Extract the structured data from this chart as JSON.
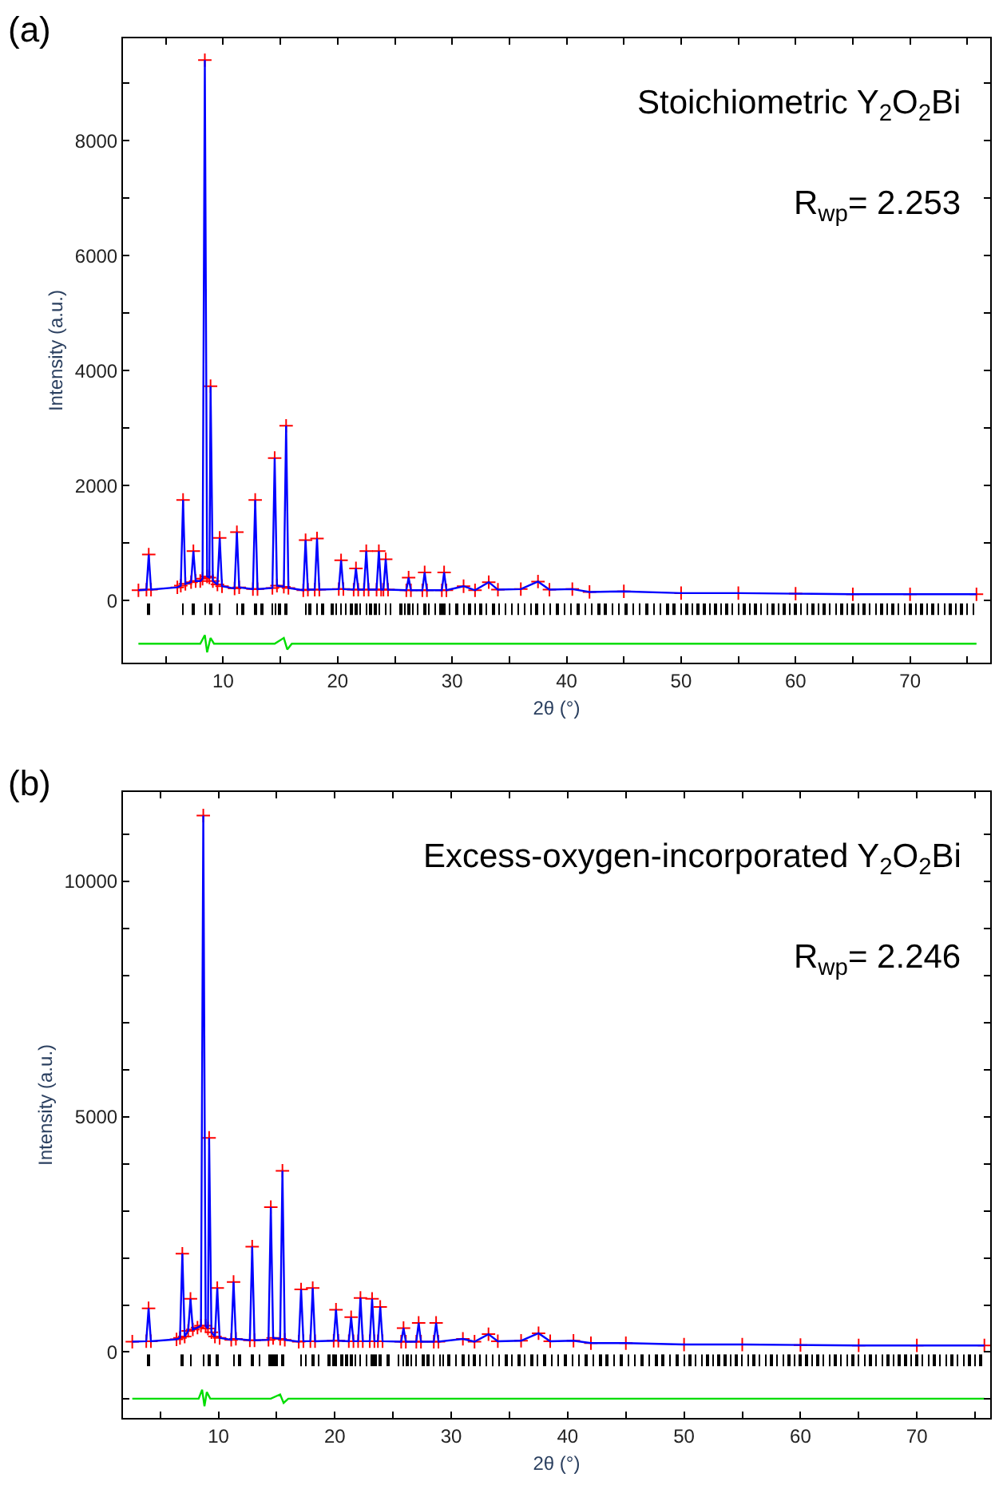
{
  "chart_data": [
    {
      "type": "scatter",
      "title": "(a)",
      "xlabel": "2θ (°)",
      "ylabel": "Intensity (a.u.)",
      "annotations": [
        "Stoichiometric Y$_{2}$O$_{2}$Bi",
        "R$_{wp}$= 2.253"
      ],
      "xlim": [
        1.25,
        77
      ],
      "ylim": [
        -1080,
        9780
      ],
      "xticks": [
        {
          "value": 5,
          "label": null
        },
        10,
        {
          "value": 15,
          "label": null
        },
        20,
        {
          "value": 25,
          "label": null
        },
        30,
        {
          "value": 35,
          "label": null
        },
        40,
        {
          "value": 45,
          "label": null
        },
        50,
        {
          "value": 55,
          "label": null
        },
        60,
        {
          "value": 65,
          "label": null
        },
        70,
        {
          "value": 75,
          "label": null
        }
      ],
      "yticks": [
        0,
        {
          "value": 1000,
          "label": null
        },
        2000,
        {
          "value": 3000,
          "label": null
        },
        4000,
        {
          "value": 5000,
          "label": null
        },
        6000,
        {
          "value": 7000,
          "label": null
        },
        8000,
        {
          "value": 9000,
          "label": null
        }
      ],
      "series": [
        {
          "marker": "cross",
          "color": "#ff0000",
          "x": [
            2.6,
            3.3,
            3.5,
            3.7,
            6.0,
            6.3,
            6.5,
            6.7,
            7.2,
            7.4,
            7.6,
            8.0,
            8.2,
            8.4,
            8.6,
            8.8,
            8.9,
            9.1,
            9.5,
            9.7,
            9.9,
            11.0,
            11.2,
            11.4,
            12.6,
            12.8,
            13.0,
            14.3,
            14.5,
            14.7,
            15.3,
            15.5,
            15.7,
            17.0,
            17.2,
            17.4,
            18.0,
            18.2,
            18.4,
            20.1,
            20.3,
            20.5,
            21.4,
            21.6,
            21.8,
            22.3,
            22.5,
            22.7,
            23.4,
            23.6,
            23.8,
            24.0,
            24.2,
            24.4,
            26.0,
            26.2,
            26.4,
            27.4,
            27.6,
            27.8,
            29.1,
            29.3,
            29.5,
            31,
            32,
            33.2,
            34,
            36,
            37.5,
            38.5,
            40.5,
            42,
            45,
            50,
            55,
            60,
            65,
            70,
            75.8
          ],
          "values": [
            180,
            190,
            800,
            190,
            230,
            260,
            1750,
            290,
            320,
            860,
            340,
            340,
            380,
            9400,
            420,
            400,
            3730,
            340,
            280,
            1090,
            250,
            210,
            1190,
            230,
            200,
            1750,
            200,
            220,
            2480,
            260,
            240,
            3040,
            220,
            180,
            1050,
            190,
            190,
            1080,
            190,
            200,
            700,
            200,
            190,
            560,
            190,
            190,
            860,
            190,
            190,
            860,
            190,
            190,
            720,
            190,
            180,
            400,
            180,
            180,
            490,
            180,
            180,
            490,
            180,
            250,
            180,
            320,
            190,
            200,
            330,
            190,
            200,
            150,
            160,
            130,
            130,
            120,
            110,
            110,
            110
          ]
        },
        {
          "type": "line",
          "line_style": "solid",
          "color": "#0000ff",
          "x": [
            2.6,
            3.3,
            3.5,
            3.7,
            6.0,
            6.3,
            6.5,
            6.7,
            7.2,
            7.4,
            7.6,
            8.0,
            8.2,
            8.4,
            8.6,
            8.8,
            8.9,
            9.1,
            9.5,
            9.7,
            9.9,
            11.0,
            11.2,
            11.4,
            12.6,
            12.8,
            13.0,
            14.3,
            14.5,
            14.7,
            15.3,
            15.5,
            15.7,
            17.0,
            17.2,
            17.4,
            18.0,
            18.2,
            18.4,
            20.1,
            20.3,
            20.5,
            21.4,
            21.6,
            21.8,
            22.3,
            22.5,
            22.7,
            23.4,
            23.6,
            23.8,
            24.0,
            24.2,
            24.4,
            26.0,
            26.2,
            26.4,
            27.4,
            27.6,
            27.8,
            29.1,
            29.3,
            29.5,
            31,
            32,
            33.2,
            34,
            36,
            37.5,
            38.5,
            40.5,
            42,
            45,
            50,
            55,
            60,
            65,
            70,
            75.8
          ],
          "values": [
            180,
            190,
            800,
            190,
            230,
            260,
            1750,
            290,
            320,
            860,
            340,
            340,
            380,
            9400,
            420,
            400,
            3730,
            340,
            280,
            1090,
            250,
            210,
            1190,
            230,
            200,
            1750,
            200,
            220,
            2480,
            260,
            240,
            3040,
            220,
            180,
            1050,
            190,
            190,
            1080,
            190,
            200,
            700,
            200,
            190,
            560,
            190,
            190,
            860,
            190,
            190,
            860,
            190,
            190,
            720,
            190,
            180,
            400,
            180,
            180,
            490,
            180,
            180,
            490,
            180,
            250,
            180,
            320,
            190,
            200,
            330,
            190,
            200,
            150,
            160,
            130,
            130,
            120,
            110,
            110,
            110
          ]
        },
        {
          "type": "bar",
          "color": "#000000",
          "x": [
            3.5,
            6.5,
            7.4,
            8.4,
            8.9,
            9.7,
            11.2,
            11.7,
            12.8,
            13.4,
            14.3,
            14.6,
            14.9,
            15.5,
            17.2,
            17.6,
            18.2,
            18.7,
            19.5,
            19.9,
            20.3,
            20.7,
            21.2,
            21.6,
            22.0,
            22.5,
            22.9,
            23.3,
            23.6,
            24.2,
            24.6,
            25.5,
            25.9,
            26.2,
            26.6,
            27.0,
            27.6,
            28.0,
            28.5,
            29.0,
            29.3,
            29.8,
            30.4,
            31.0,
            31.5,
            32.0,
            32.5,
            33.0,
            33.6,
            34.1,
            34.7,
            35.2,
            35.8,
            36.3,
            36.9,
            37.4,
            38.0,
            38.6,
            39.2,
            39.8,
            40.4,
            41.0,
            41.6,
            42.2,
            42.8,
            43.4,
            44.0,
            44.6,
            45.2,
            45.8,
            46.4,
            47.0,
            47.6,
            48.2,
            48.8,
            49.4,
            50.0,
            50.5,
            51.0,
            51.5,
            52.0,
            52.5,
            53.0,
            53.5,
            54.0,
            54.5,
            55.0,
            55.5,
            56.0,
            56.5,
            57.0,
            57.5,
            58.0,
            58.5,
            59.0,
            59.5,
            60.0,
            60.5,
            61.0,
            61.5,
            62.0,
            62.5,
            63.0,
            63.5,
            64.0,
            64.5,
            65.0,
            65.5,
            66.0,
            66.5,
            67.0,
            67.5,
            68.0,
            68.5,
            69.0,
            69.5,
            70.0,
            70.5,
            71.0,
            71.5,
            72.0,
            72.5,
            73.0,
            73.5,
            74.0,
            74.5,
            75.0,
            75.5
          ],
          "base": [
            -250,
            -250,
            -250,
            -250,
            -250,
            -250,
            -250,
            -250,
            -250,
            -250,
            -250,
            -250,
            -250,
            -250,
            -250,
            -250,
            -250,
            -250,
            -250,
            -250,
            -250,
            -250,
            -250,
            -250,
            -250,
            -250,
            -250,
            -250,
            -250,
            -250,
            -250,
            -250,
            -250,
            -250,
            -250,
            -250,
            -250,
            -250,
            -250,
            -250,
            -250,
            -250,
            -250,
            -250,
            -250,
            -250,
            -250,
            -250,
            -250,
            -250,
            -250,
            -250,
            -250,
            -250,
            -250,
            -250,
            -250,
            -250,
            -250,
            -250,
            -250,
            -250,
            -250,
            -250,
            -250,
            -250,
            -250,
            -250,
            -250,
            -250,
            -250,
            -250,
            -250,
            -250,
            -250,
            -250,
            -250,
            -250,
            -250,
            -250,
            -250,
            -250,
            -250,
            -250,
            -250,
            -250,
            -250,
            -250,
            -250,
            -250,
            -250,
            -250,
            -250,
            -250,
            -250,
            -250,
            -250,
            -250,
            -250,
            -250,
            -250,
            -250,
            -250,
            -250,
            -250,
            -250,
            -250,
            -250,
            -250,
            -250,
            -250,
            -250,
            -250,
            -250,
            -250,
            -250,
            -250,
            -250,
            -250,
            -250,
            -250,
            -250,
            -250,
            -250,
            -250,
            -250,
            -250,
            -250
          ],
          "values": [
            200,
            200,
            200,
            200,
            200,
            200,
            200,
            200,
            200,
            200,
            200,
            200,
            200,
            200,
            200,
            200,
            200,
            200,
            200,
            200,
            200,
            200,
            200,
            200,
            200,
            200,
            200,
            200,
            200,
            200,
            200,
            200,
            200,
            200,
            200,
            200,
            200,
            200,
            200,
            200,
            200,
            200,
            200,
            200,
            200,
            200,
            200,
            200,
            200,
            200,
            200,
            200,
            200,
            200,
            200,
            200,
            200,
            200,
            200,
            200,
            200,
            200,
            200,
            200,
            200,
            200,
            200,
            200,
            200,
            200,
            200,
            200,
            200,
            200,
            200,
            200,
            200,
            200,
            200,
            200,
            200,
            200,
            200,
            200,
            200,
            200,
            200,
            200,
            200,
            200,
            200,
            200,
            200,
            200,
            200,
            200,
            200,
            200,
            200,
            200,
            200,
            200,
            200,
            200,
            200,
            200,
            200,
            200,
            200,
            200,
            200,
            200,
            200,
            200,
            200,
            200,
            200,
            200,
            200,
            200,
            200,
            200,
            200,
            200,
            200,
            200,
            200,
            200
          ]
        },
        {
          "type": "line",
          "line_style": "solid",
          "color": "#00dd00",
          "x": [
            2.6,
            8.0,
            8.4,
            8.6,
            8.9,
            9.2,
            14.5,
            15.3,
            15.6,
            16.0,
            30,
            75.8
          ],
          "values": [
            -750,
            -750,
            -600,
            -900,
            -650,
            -750,
            -750,
            -650,
            -850,
            -750,
            -750,
            -750
          ]
        }
      ]
    },
    {
      "type": "scatter",
      "title": "(b)",
      "xlabel": "2θ (°)",
      "ylabel": "Intensity (a.u.)",
      "annotations": [
        "Excess-oxygen-incorporated Y$_{2}$O$_{2}$Bi",
        "R$_{wp}$= 2.246"
      ],
      "xlim": [
        1.8,
        76.3
      ],
      "ylim": [
        -1400,
        11900
      ],
      "xticks": [
        {
          "value": 5,
          "label": null
        },
        10,
        {
          "value": 15,
          "label": null
        },
        20,
        {
          "value": 25,
          "label": null
        },
        30,
        {
          "value": 35,
          "label": null
        },
        40,
        {
          "value": 45,
          "label": null
        },
        50,
        {
          "value": 55,
          "label": null
        },
        60,
        {
          "value": 65,
          "label": null
        },
        70,
        {
          "value": 75,
          "label": null
        }
      ],
      "yticks": [
        {
          "value": -1000,
          "label": null
        },
        0,
        {
          "value": 1000,
          "label": null
        },
        {
          "value": 2000,
          "label": null
        },
        {
          "value": 3000,
          "label": null
        },
        {
          "value": 4000,
          "label": null
        },
        5000,
        {
          "value": 6000,
          "label": null
        },
        {
          "value": 7000,
          "label": null
        },
        {
          "value": 8000,
          "label": null
        },
        {
          "value": 9000,
          "label": null
        },
        10000,
        {
          "value": 11000,
          "label": null
        }
      ],
      "series": [
        {
          "marker": "cross",
          "color": "#ff0000",
          "x": [
            2.6,
            3.8,
            4.0,
            4.2,
            6.4,
            6.7,
            6.9,
            7.1,
            7.4,
            7.6,
            7.8,
            8.2,
            8.5,
            8.7,
            8.9,
            9.1,
            9.2,
            9.4,
            9.7,
            9.9,
            10.1,
            11.1,
            11.3,
            11.5,
            12.7,
            12.9,
            13.1,
            14.3,
            14.5,
            14.7,
            15.3,
            15.5,
            15.7,
            16.9,
            17.1,
            17.3,
            17.9,
            18.1,
            18.3,
            19.9,
            20.1,
            20.3,
            21.2,
            21.4,
            21.6,
            22.0,
            22.2,
            22.4,
            23.0,
            23.2,
            23.4,
            23.7,
            23.9,
            24.1,
            25.7,
            25.9,
            26.1,
            27.0,
            27.2,
            27.4,
            28.5,
            28.7,
            28.9,
            31,
            32,
            33.2,
            34,
            36,
            37.5,
            38.5,
            40.5,
            42,
            45,
            50,
            55,
            60,
            65,
            70,
            75.8
          ],
          "values": [
            220,
            230,
            930,
            230,
            270,
            300,
            2090,
            330,
            450,
            1130,
            480,
            520,
            560,
            11400,
            560,
            500,
            4550,
            420,
            330,
            1360,
            300,
            260,
            1490,
            280,
            250,
            2240,
            250,
            260,
            3080,
            300,
            280,
            3850,
            260,
            220,
            1330,
            230,
            230,
            1360,
            230,
            240,
            900,
            240,
            230,
            740,
            230,
            230,
            1150,
            230,
            230,
            1130,
            230,
            230,
            960,
            230,
            220,
            510,
            220,
            220,
            620,
            220,
            220,
            620,
            220,
            280,
            220,
            380,
            230,
            240,
            400,
            230,
            240,
            190,
            190,
            160,
            160,
            150,
            140,
            140,
            140
          ]
        },
        {
          "type": "line",
          "line_style": "solid",
          "color": "#0000ff",
          "x": [
            2.6,
            3.8,
            4.0,
            4.2,
            6.4,
            6.7,
            6.9,
            7.1,
            7.4,
            7.6,
            7.8,
            8.2,
            8.5,
            8.7,
            8.9,
            9.1,
            9.2,
            9.4,
            9.7,
            9.9,
            10.1,
            11.1,
            11.3,
            11.5,
            12.7,
            12.9,
            13.1,
            14.3,
            14.5,
            14.7,
            15.3,
            15.5,
            15.7,
            16.9,
            17.1,
            17.3,
            17.9,
            18.1,
            18.3,
            19.9,
            20.1,
            20.3,
            21.2,
            21.4,
            21.6,
            22.0,
            22.2,
            22.4,
            23.0,
            23.2,
            23.4,
            23.7,
            23.9,
            24.1,
            25.7,
            25.9,
            26.1,
            27.0,
            27.2,
            27.4,
            28.5,
            28.7,
            28.9,
            31,
            32,
            33.2,
            34,
            36,
            37.5,
            38.5,
            40.5,
            42,
            45,
            50,
            55,
            60,
            65,
            70,
            75.8
          ],
          "values": [
            220,
            230,
            930,
            230,
            270,
            300,
            2090,
            330,
            450,
            1130,
            480,
            520,
            560,
            11400,
            560,
            500,
            4550,
            420,
            330,
            1360,
            300,
            260,
            1490,
            280,
            250,
            2240,
            250,
            260,
            3080,
            300,
            280,
            3850,
            260,
            220,
            1330,
            230,
            230,
            1360,
            230,
            240,
            900,
            240,
            230,
            740,
            230,
            230,
            1150,
            230,
            230,
            1130,
            230,
            230,
            960,
            230,
            220,
            510,
            220,
            220,
            620,
            220,
            220,
            620,
            220,
            280,
            220,
            380,
            230,
            240,
            400,
            230,
            240,
            190,
            190,
            160,
            160,
            150,
            140,
            140,
            140
          ]
        },
        {
          "type": "bar",
          "color": "#000000",
          "x": [
            4.0,
            6.9,
            7.6,
            8.7,
            9.2,
            9.9,
            11.3,
            11.8,
            12.9,
            13.5,
            14.4,
            14.7,
            15.0,
            15.5,
            17.1,
            17.5,
            18.1,
            18.6,
            19.5,
            19.9,
            20.1,
            20.6,
            21.0,
            21.4,
            21.8,
            22.2,
            22.7,
            23.2,
            23.5,
            23.9,
            24.6,
            25.5,
            25.9,
            26.2,
            26.6,
            27.0,
            27.6,
            28.0,
            28.5,
            29.0,
            29.3,
            29.8,
            30.4,
            31.0,
            31.5,
            32.0,
            32.5,
            33.0,
            33.6,
            34.1,
            34.7,
            35.2,
            35.8,
            36.3,
            36.9,
            37.4,
            38.0,
            38.6,
            39.2,
            39.8,
            40.4,
            41.0,
            41.6,
            42.2,
            42.8,
            43.4,
            44.0,
            44.6,
            45.2,
            45.8,
            46.4,
            47.0,
            47.6,
            48.2,
            48.8,
            49.4,
            50.0,
            50.5,
            51.0,
            51.5,
            52.0,
            52.5,
            53.0,
            53.5,
            54.0,
            54.5,
            55.0,
            55.5,
            56.0,
            56.5,
            57.0,
            57.5,
            58.0,
            58.5,
            59.0,
            59.5,
            60.0,
            60.5,
            61.0,
            61.5,
            62.0,
            62.5,
            63.0,
            63.5,
            64.0,
            64.5,
            65.0,
            65.5,
            66.0,
            66.5,
            67.0,
            67.5,
            68.0,
            68.5,
            69.0,
            69.5,
            70.0,
            70.5,
            71.0,
            71.5,
            72.0,
            72.5,
            73.0,
            73.5,
            74.0,
            74.5,
            75.0,
            75.5
          ],
          "base": [
            -300,
            -300,
            -300,
            -300,
            -300,
            -300,
            -300,
            -300,
            -300,
            -300,
            -300,
            -300,
            -300,
            -300,
            -300,
            -300,
            -300,
            -300,
            -300,
            -300,
            -300,
            -300,
            -300,
            -300,
            -300,
            -300,
            -300,
            -300,
            -300,
            -300,
            -300,
            -300,
            -300,
            -300,
            -300,
            -300,
            -300,
            -300,
            -300,
            -300,
            -300,
            -300,
            -300,
            -300,
            -300,
            -300,
            -300,
            -300,
            -300,
            -300,
            -300,
            -300,
            -300,
            -300,
            -300,
            -300,
            -300,
            -300,
            -300,
            -300,
            -300,
            -300,
            -300,
            -300,
            -300,
            -300,
            -300,
            -300,
            -300,
            -300,
            -300,
            -300,
            -300,
            -300,
            -300,
            -300,
            -300,
            -300,
            -300,
            -300,
            -300,
            -300,
            -300,
            -300,
            -300,
            -300,
            -300,
            -300,
            -300,
            -300,
            -300,
            -300,
            -300,
            -300,
            -300,
            -300,
            -300,
            -300,
            -300,
            -300,
            -300,
            -300,
            -300,
            -300,
            -300,
            -300,
            -300,
            -300,
            -300,
            -300,
            -300,
            -300,
            -300,
            -300,
            -300,
            -300,
            -300,
            -300,
            -300,
            -300,
            -300,
            -300,
            -300,
            -300,
            -300,
            -300,
            -300,
            -300
          ],
          "values": [
            250,
            250,
            250,
            250,
            250,
            250,
            250,
            250,
            250,
            250,
            250,
            250,
            250,
            250,
            250,
            250,
            250,
            250,
            250,
            250,
            250,
            250,
            250,
            250,
            250,
            250,
            250,
            250,
            250,
            250,
            250,
            250,
            250,
            250,
            250,
            250,
            250,
            250,
            250,
            250,
            250,
            250,
            250,
            250,
            250,
            250,
            250,
            250,
            250,
            250,
            250,
            250,
            250,
            250,
            250,
            250,
            250,
            250,
            250,
            250,
            250,
            250,
            250,
            250,
            250,
            250,
            250,
            250,
            250,
            250,
            250,
            250,
            250,
            250,
            250,
            250,
            250,
            250,
            250,
            250,
            250,
            250,
            250,
            250,
            250,
            250,
            250,
            250,
            250,
            250,
            250,
            250,
            250,
            250,
            250,
            250,
            250,
            250,
            250,
            250,
            250,
            250,
            250,
            250,
            250,
            250,
            250,
            250,
            250,
            250,
            250,
            250,
            250,
            250,
            250,
            250,
            250,
            250,
            250,
            250,
            250,
            250,
            250,
            250,
            250,
            250,
            250,
            250
          ]
        },
        {
          "type": "line",
          "line_style": "solid",
          "color": "#00dd00",
          "x": [
            2.6,
            8.3,
            8.6,
            8.8,
            9.0,
            9.3,
            14.5,
            15.3,
            15.6,
            16.0,
            30,
            75.8
          ],
          "values": [
            -990,
            -990,
            -800,
            -1150,
            -850,
            -990,
            -990,
            -900,
            -1080,
            -990,
            -990,
            -990
          ]
        }
      ]
    }
  ]
}
